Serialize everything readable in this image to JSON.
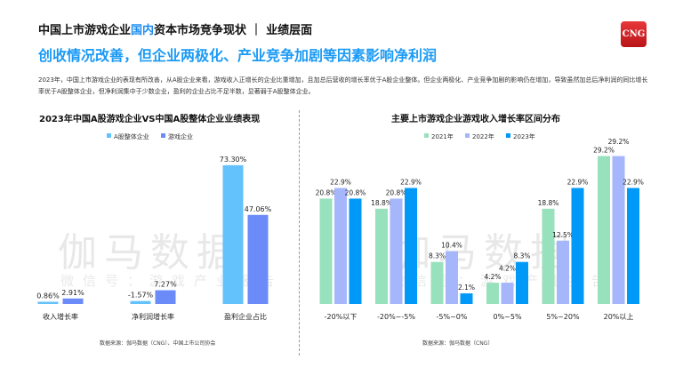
{
  "header": {
    "title_part1": "中国上市游戏企业",
    "title_highlight": "国内",
    "title_part2": "资本市场竞争现状 ｜ 业绩层面",
    "subtitle": "创收情况改善，但企业两极化、产业竞争加剧等因素影响净利润",
    "summary": "2023年，中国上市游戏企业的表现有所改善，从A股企业来看，游戏收入正增长的企业比重增加，且加总后营收的增长率优于A股企业整体。但企业两极化、产业竞争加剧的影响仍在增加，导致虽然加总后净利润的同比增长率优于A股整体企业，但净利润集中于少数企业，盈利的企业占比不足半数，显著弱于A股整体企业。",
    "logo": "CNG"
  },
  "watermark": {
    "main": "伽马数据",
    "sub": "微信号：游戏产业报告"
  },
  "chart_data": [
    {
      "type": "bar",
      "title": "2023年中国A股游戏企业VS中国A股整体企业业绩表现",
      "categories": [
        "收入增长率",
        "净利润增长率",
        "盈利企业占比"
      ],
      "series": [
        {
          "name": "A股整体企业",
          "values": [
            0.86,
            -1.57,
            73.3
          ],
          "labels": [
            "0.86%",
            "-1.57%",
            "73.30%"
          ],
          "color": "#63c1fb"
        },
        {
          "name": "游戏企业",
          "values": [
            2.91,
            7.27,
            47.06
          ],
          "labels": [
            "2.91%",
            "7.27%",
            "47.06%"
          ],
          "color": "#6a8bf8"
        }
      ],
      "legend": "top",
      "grid": false,
      "source": "数据来源：伽马数据（CNG）、中国上市公司协会"
    },
    {
      "type": "bar",
      "title": "主要上市游戏企业游戏收入增长率区间分布",
      "categories": [
        "-20%以下",
        "-20%~-5%",
        "-5%~0%",
        "0%~5%",
        "5%~20%",
        "20%以上"
      ],
      "series": [
        {
          "name": "2021年",
          "values": [
            20.8,
            18.8,
            8.3,
            4.2,
            18.8,
            29.2
          ],
          "color": "#98e1bd"
        },
        {
          "name": "2022年",
          "values": [
            22.9,
            20.8,
            10.4,
            4.2,
            12.5,
            29.2
          ],
          "color": "#a6b6fb"
        },
        {
          "name": "2023年",
          "values": [
            20.8,
            22.9,
            2.1,
            8.3,
            22.9,
            22.9
          ],
          "color": "#0099f7"
        }
      ],
      "legend": "top",
      "grid": false,
      "source": "数据来源：伽马数据（CNG）"
    }
  ]
}
